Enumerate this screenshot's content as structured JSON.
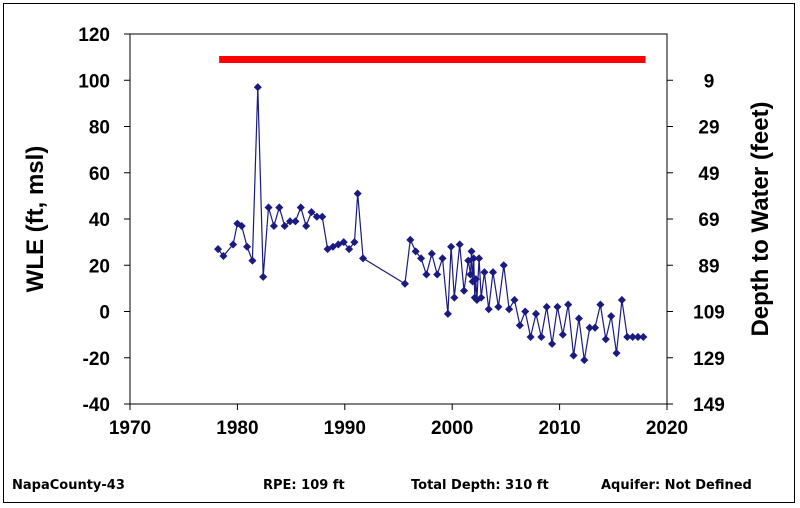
{
  "chart_data": {
    "type": "line",
    "title": "",
    "xlabel": "",
    "ylabel": "WLE (ft, msl)",
    "y2label": "Depth to Water (feet)",
    "xlim": [
      1970,
      2020
    ],
    "ylim": [
      -40,
      120
    ],
    "y2lim": [
      149,
      -11
    ],
    "x_ticks": [
      "1970",
      "1980",
      "1990",
      "2000",
      "2010",
      "2020"
    ],
    "y_ticks": [
      "120",
      "100",
      "80",
      "60",
      "40",
      "20",
      "0",
      "-20",
      "-40"
    ],
    "y2_ticks": [
      "9",
      "29",
      "49",
      "69",
      "89",
      "109",
      "129",
      "149"
    ],
    "grid": false,
    "legend": "none",
    "colors": {
      "series": "#1a1a80",
      "reference": "#ff0000"
    },
    "reference_line": {
      "label": "RPE",
      "y": 109,
      "x": [
        1978.3,
        2018.0
      ]
    },
    "series": [
      {
        "x": [
          1978.2,
          1978.7,
          1979.6,
          1980.0,
          1980.4,
          1980.9,
          1981.4,
          1981.9,
          1982.4,
          1982.9,
          1983.4,
          1983.9,
          1984.4,
          1984.9,
          1985.4,
          1985.9,
          1986.4,
          1986.9,
          1987.4,
          1987.9,
          1988.4,
          1988.9,
          1989.4,
          1989.9,
          1990.4,
          1990.9,
          1991.2,
          1991.7,
          1995.6,
          1996.1,
          1996.6,
          1997.1,
          1997.6,
          1998.1,
          1998.6,
          1999.1,
          1999.6,
          1999.9,
          2000.2,
          2000.7,
          2001.1,
          2001.5,
          2001.7,
          2001.8,
          2001.9,
          2002.0,
          2002.1,
          2002.2,
          2002.3,
          2002.5,
          2002.7,
          2003.0,
          2003.4,
          2003.8,
          2004.3,
          2004.8,
          2005.3,
          2005.8,
          2006.3,
          2006.8,
          2007.3,
          2007.8,
          2008.3,
          2008.8,
          2009.3,
          2009.8,
          2010.3,
          2010.8,
          2011.3,
          2011.8,
          2012.3,
          2012.8,
          2013.3,
          2013.8,
          2014.3,
          2014.8,
          2015.3,
          2015.8,
          2016.3,
          2016.8,
          2017.3,
          2017.8
        ],
        "y": [
          27,
          24,
          29,
          38,
          37,
          28,
          22,
          97,
          15,
          45,
          37,
          45,
          37,
          39,
          39,
          45,
          37,
          43,
          41,
          41,
          27,
          28,
          29,
          30,
          27,
          30,
          51,
          23,
          12,
          31,
          26,
          23,
          16,
          25,
          16,
          23,
          -1,
          28,
          6,
          29,
          9,
          22,
          16,
          26,
          13,
          23,
          6,
          14,
          5,
          23,
          6,
          17,
          1,
          17,
          2,
          20,
          1,
          5,
          -6,
          0,
          -11,
          -1,
          -11,
          2,
          -14,
          2,
          -10,
          3,
          -19,
          -3,
          -21,
          -7,
          -7,
          3,
          -12,
          -2,
          -18,
          5,
          -11,
          -11,
          -11,
          -11
        ]
      }
    ]
  },
  "footer": {
    "well_id": "NapaCounty-43",
    "rpe": "RPE: 109 ft",
    "total_depth": "Total Depth: 310 ft",
    "aquifer": "Aquifer: Not Defined"
  }
}
